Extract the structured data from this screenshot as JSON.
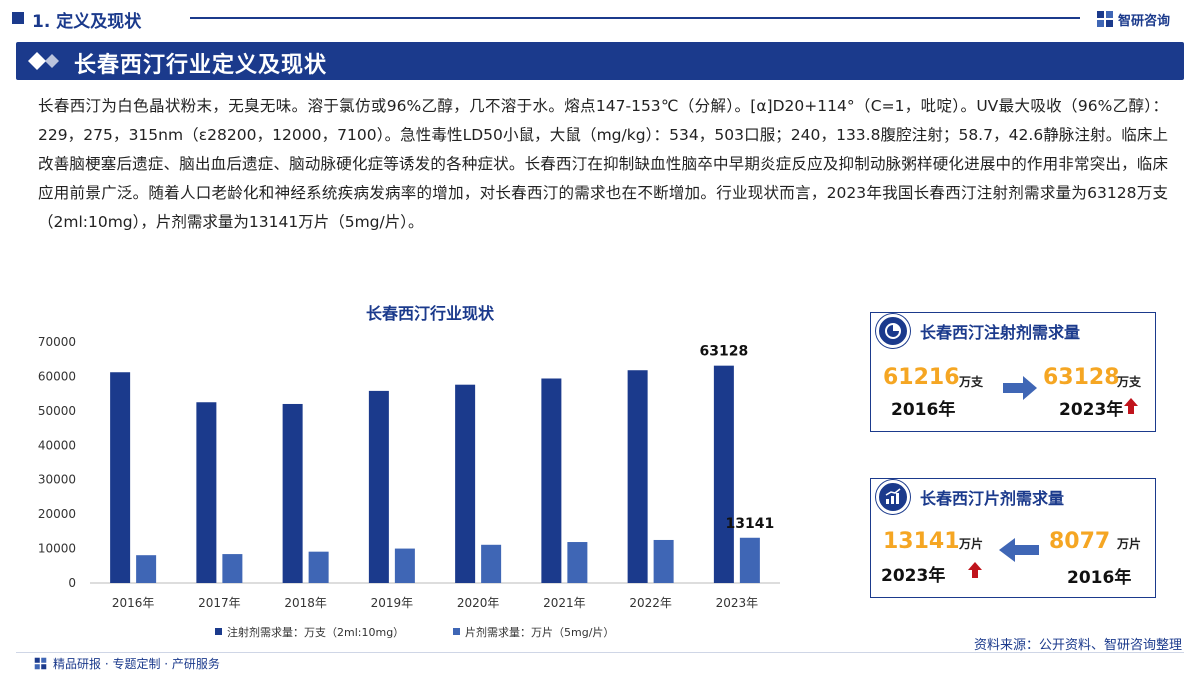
{
  "section": {
    "title": "1. 定义及现状"
  },
  "brand": {
    "name": "智研咨询"
  },
  "banner": {
    "title": "长春西汀行业定义及现状"
  },
  "paragraph": "长春西汀为白色晶状粉末，无臭无味。溶于氯仿或96%乙醇，几不溶于水。熔点147-153℃（分解）。[α]D20+114°（C=1，吡啶）。UV最大吸收（96%乙醇）：229，275，315nm（ε28200，12000，7100）。急性毒性LD50小鼠，大鼠（mg/kg）：534，503口服；240，133.8腹腔注射；58.7，42.6静脉注射。临床上改善脑梗塞后遗症、脑出血后遗症、脑动脉硬化症等诱发的各种症状。长春西汀在抑制缺血性脑卒中早期炎症反应及抑制动脉粥样硬化进展中的作用非常突出，临床应用前景广泛。随着人口老龄化和神经系统疾病发病率的增加，对长春西汀的需求也在不断增加。行业现状而言，2023年我国长春西汀注射剂需求量为63128万支（2ml:10mg），片剂需求量为13141万片（5mg/片）。",
  "chart_data": {
    "type": "bar",
    "title": "长春西汀行业现状",
    "categories": [
      "2016年",
      "2017年",
      "2018年",
      "2019年",
      "2020年",
      "2021年",
      "2022年",
      "2023年"
    ],
    "series": [
      {
        "name": "注射剂需求量：万支（2ml:10mg）",
        "values": [
          61216,
          52500,
          52000,
          55800,
          57600,
          59400,
          61800,
          63128
        ],
        "color": "#1b3a8c"
      },
      {
        "name": "片剂需求量：万片（5mg/片）",
        "values": [
          8077,
          8400,
          9100,
          10000,
          11100,
          11900,
          12500,
          13141
        ],
        "color": "#3f66b5"
      }
    ],
    "data_labels": [
      {
        "series": 0,
        "index": 7,
        "text": "63128"
      },
      {
        "series": 1,
        "index": 7,
        "text": "13141"
      }
    ],
    "ylim": [
      0,
      70000
    ],
    "yticks": [
      0,
      10000,
      20000,
      30000,
      40000,
      50000,
      60000,
      70000
    ],
    "xlabel": "",
    "ylabel": "",
    "grid": false,
    "legend": "bottom"
  },
  "card_injection": {
    "title": "长春西汀注射剂需求量",
    "from_value": "61216",
    "from_unit": "万支",
    "from_year": "2016年",
    "to_value": "63128",
    "to_unit": "万支",
    "to_year": "2023年"
  },
  "card_tablet": {
    "title": "长春西汀片剂需求量",
    "left_value": "13141",
    "left_unit": "万片",
    "left_year": "2023年",
    "right_value": "8077",
    "right_unit": "万片",
    "right_year": "2016年"
  },
  "source": "资料来源：公开资料、智研咨询整理",
  "footer": "精品研报 · 专题定制 · 产研服务",
  "colors": {
    "primary": "#1b3a8c",
    "secondary": "#3f66b5",
    "accent": "#f5a623",
    "up_arrow": "#c0141c"
  }
}
